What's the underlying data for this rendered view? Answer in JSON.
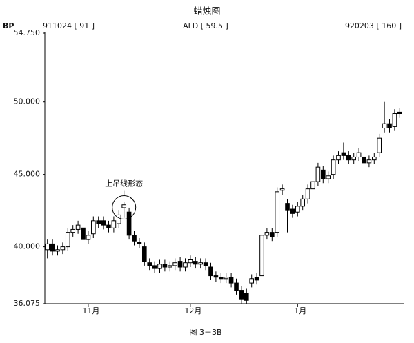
{
  "chart_data": {
    "type": "candlestick",
    "title": "蜡烛图",
    "header": {
      "left": "911024 [ 91 ]",
      "center": "ALD [ 59.5 ]",
      "right": "920203 [ 160 ]"
    },
    "y_label": "BP",
    "annotation": "上吊线形态",
    "caption": "图 3－3B",
    "categories": [
      null,
      null,
      null,
      null,
      null,
      null,
      null,
      null,
      "11月",
      null,
      null,
      null,
      null,
      null,
      null,
      null,
      null,
      null,
      null,
      null,
      null,
      null,
      null,
      null,
      null,
      null,
      null,
      null,
      "12月",
      null,
      null,
      null,
      null,
      null,
      null,
      null,
      null,
      null,
      null,
      null,
      null,
      null,
      null,
      null,
      null,
      null,
      null,
      null,
      null,
      "1月",
      null,
      null,
      null,
      null,
      null,
      null,
      null,
      null,
      null,
      null,
      null,
      null,
      null,
      null,
      null,
      null,
      null,
      null,
      null,
      null
    ],
    "open": [
      39.8,
      40.2,
      39.7,
      39.8,
      40.0,
      41.0,
      41.2,
      41.3,
      40.5,
      40.9,
      41.8,
      41.8,
      41.5,
      41.3,
      41.6,
      42.7,
      42.4,
      40.8,
      40.3,
      40.0,
      38.9,
      38.7,
      38.5,
      38.8,
      38.6,
      38.7,
      39.0,
      38.6,
      38.9,
      39.0,
      38.8,
      38.9,
      38.6,
      38.0,
      37.9,
      37.8,
      37.9,
      37.5,
      37.0,
      36.8,
      37.5,
      37.9,
      38.0,
      40.8,
      41.0,
      41.0,
      43.9,
      43.0,
      42.6,
      42.4,
      42.8,
      43.3,
      44.0,
      44.5,
      45.3,
      44.7,
      45.0,
      46.0,
      46.5,
      46.3,
      46.0,
      46.2,
      46.2,
      45.8,
      46.0,
      46.5,
      48.2,
      48.5,
      48.3,
      49.3
    ],
    "high": [
      40.5,
      40.5,
      40.1,
      40.3,
      41.3,
      41.5,
      41.8,
      41.6,
      41.1,
      42.1,
      42.1,
      42.1,
      41.8,
      42.1,
      42.5,
      43.1,
      42.7,
      41.1,
      40.6,
      40.3,
      39.2,
      39.0,
      39.1,
      39.1,
      39.0,
      39.2,
      39.3,
      39.2,
      39.4,
      39.3,
      39.2,
      39.2,
      38.9,
      38.3,
      38.2,
      38.2,
      38.2,
      37.8,
      37.3,
      37.1,
      38.1,
      38.2,
      41.1,
      41.3,
      41.3,
      44.1,
      44.3,
      43.3,
      42.9,
      43.1,
      43.6,
      44.3,
      44.8,
      45.8,
      45.6,
      45.2,
      46.3,
      46.6,
      47.2,
      46.6,
      46.5,
      46.8,
      46.5,
      46.3,
      46.5,
      47.8,
      50.0,
      48.8,
      49.5,
      49.6
    ],
    "low": [
      39.2,
      39.4,
      39.4,
      39.5,
      39.7,
      40.7,
      40.9,
      40.2,
      40.2,
      40.6,
      41.3,
      41.2,
      41.0,
      41.0,
      41.3,
      42.0,
      40.5,
      40.1,
      39.9,
      38.7,
      38.4,
      38.2,
      38.2,
      38.3,
      38.3,
      38.4,
      38.3,
      38.3,
      38.6,
      38.5,
      38.5,
      38.4,
      37.7,
      37.6,
      37.5,
      37.5,
      37.2,
      36.7,
      36.1,
      36.1,
      37.2,
      37.4,
      37.7,
      40.5,
      40.4,
      40.7,
      43.6,
      41.0,
      42.0,
      42.1,
      42.5,
      43.0,
      43.7,
      44.2,
      44.4,
      44.4,
      44.7,
      45.7,
      46.0,
      45.7,
      45.7,
      45.9,
      45.5,
      45.5,
      45.7,
      46.2,
      47.9,
      47.9,
      48.0,
      48.9
    ],
    "close": [
      40.2,
      39.7,
      39.8,
      40.0,
      41.0,
      41.2,
      41.5,
      40.5,
      40.8,
      41.8,
      41.6,
      41.5,
      41.3,
      41.8,
      42.2,
      42.9,
      40.8,
      40.4,
      40.2,
      39.0,
      38.7,
      38.5,
      38.8,
      38.6,
      38.7,
      38.9,
      38.6,
      38.9,
      39.1,
      38.8,
      38.9,
      38.7,
      38.0,
      37.9,
      37.8,
      37.9,
      37.5,
      37.0,
      36.4,
      36.3,
      37.8,
      37.7,
      40.8,
      41.0,
      40.7,
      43.8,
      44.0,
      42.5,
      42.3,
      42.8,
      43.3,
      44.0,
      44.5,
      45.5,
      44.7,
      44.9,
      46.0,
      46.3,
      46.3,
      46.0,
      46.2,
      46.5,
      45.8,
      46.0,
      46.2,
      47.5,
      48.5,
      48.2,
      49.2,
      49.2
    ],
    "up_color": "#ffffff",
    "down_color": "#000000",
    "annotation_index": 15,
    "ylim": [
      36.075,
      54.75
    ],
    "yticks": [
      {
        "value": 36.075,
        "label": "36.075"
      },
      {
        "value": 40,
        "label": "40.000"
      },
      {
        "value": 45,
        "label": "45.000"
      },
      {
        "value": 50,
        "label": "50.000"
      },
      {
        "value": 54.75,
        "label": "54.750"
      }
    ]
  }
}
